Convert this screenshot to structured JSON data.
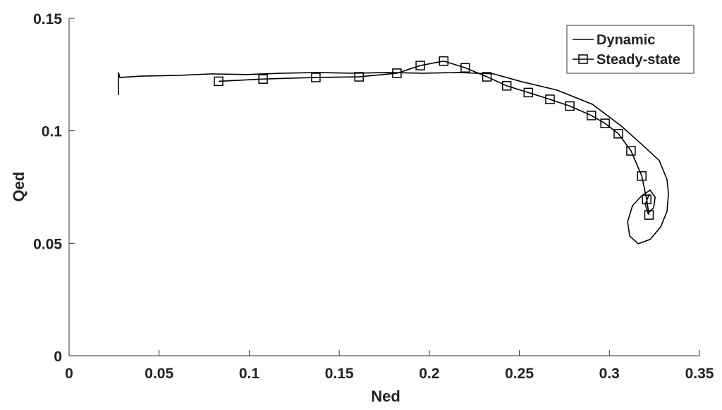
{
  "chart_data": {
    "type": "line",
    "x_label": "Ned",
    "y_label": "Qed",
    "xlim": [
      0,
      0.35
    ],
    "xticks": [
      0,
      0.05,
      0.1,
      0.15,
      0.2,
      0.25,
      0.3,
      0.35
    ],
    "ylim": [
      0,
      0.15
    ],
    "yticks": [
      0,
      0.05,
      0.1,
      0.15
    ],
    "legend": "top-right",
    "series": [
      {
        "name": "Dynamic",
        "color": "#000000",
        "marker": "none",
        "x": [
          0.0274,
          0.0274,
          0.0282,
          0.0399,
          0.0595,
          0.0791,
          0.0987,
          0.1182,
          0.1378,
          0.1574,
          0.177,
          0.1966,
          0.2161,
          0.2357,
          0.2514,
          0.2709,
          0.2905,
          0.3062,
          0.3179,
          0.3277,
          0.332,
          0.3328,
          0.332,
          0.3285,
          0.3226,
          0.316,
          0.3113,
          0.3101,
          0.3128,
          0.3179,
          0.3226,
          0.3254,
          0.3246,
          0.3215,
          0.3199,
          0.3222
        ],
        "values": [
          0.1159,
          0.1259,
          0.1237,
          0.1243,
          0.1246,
          0.1253,
          0.125,
          0.1256,
          0.1259,
          0.1256,
          0.1259,
          0.1256,
          0.1259,
          0.1253,
          0.1218,
          0.1181,
          0.1118,
          0.1024,
          0.094,
          0.0868,
          0.0783,
          0.072,
          0.0642,
          0.0573,
          0.0517,
          0.0498,
          0.0532,
          0.0595,
          0.0667,
          0.0711,
          0.0736,
          0.0705,
          0.0658,
          0.0633,
          0.0673,
          0.072
        ]
      },
      {
        "name": "Steady-state",
        "color": "#000000",
        "marker": "square",
        "x": [
          0.083,
          0.1077,
          0.137,
          0.161,
          0.182,
          0.195,
          0.208,
          0.22,
          0.232,
          0.243,
          0.255,
          0.267,
          0.278,
          0.29,
          0.2976,
          0.305,
          0.312,
          0.318,
          0.3207,
          0.322
        ],
        "values": [
          0.122,
          0.123,
          0.1237,
          0.124,
          0.1256,
          0.129,
          0.131,
          0.128,
          0.124,
          0.12,
          0.117,
          0.114,
          0.111,
          0.1068,
          0.1033,
          0.0987,
          0.0911,
          0.0799,
          0.0695,
          0.0626
        ]
      }
    ]
  }
}
